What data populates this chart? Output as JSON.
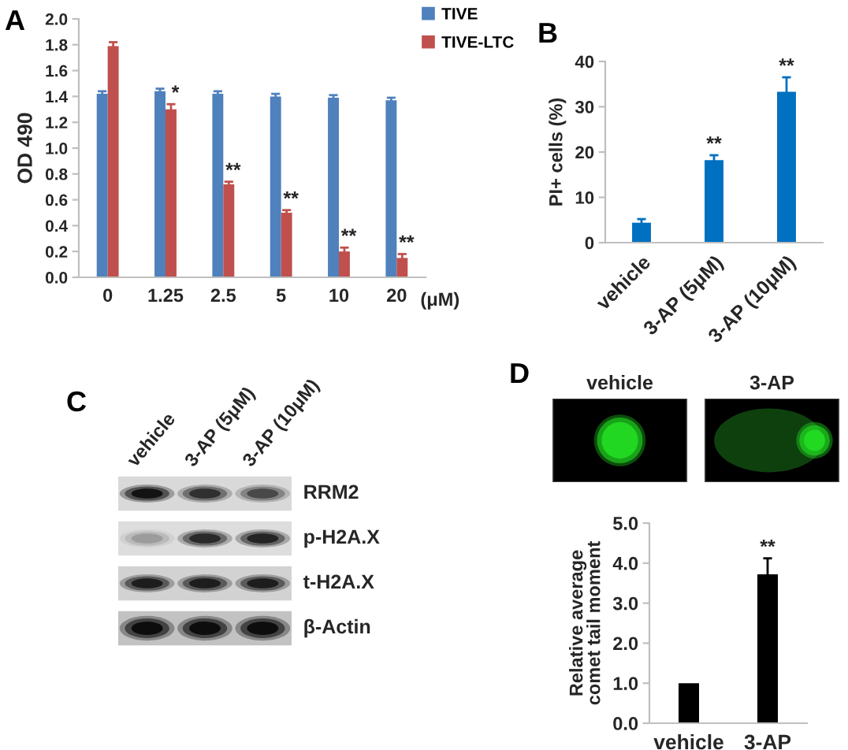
{
  "chart_data": [
    {
      "type": "bar",
      "title": "A",
      "ylabel": "OD 490",
      "xlabel": "(μM)",
      "categories": [
        "0",
        "1.25",
        "2.5",
        "5",
        "10",
        "20"
      ],
      "series": [
        {
          "name": "TIVE",
          "color": "#4f81bd",
          "values": [
            1.42,
            1.44,
            1.42,
            1.4,
            1.39,
            1.37
          ],
          "errors": [
            0.02,
            0.02,
            0.02,
            0.02,
            0.02,
            0.02
          ]
        },
        {
          "name": "TIVE-LTC",
          "color": "#c0504d",
          "values": [
            1.79,
            1.3,
            0.72,
            0.5,
            0.2,
            0.15
          ],
          "errors": [
            0.03,
            0.04,
            0.02,
            0.02,
            0.03,
            0.03
          ]
        }
      ],
      "ylim": [
        0,
        2
      ],
      "yticks": [
        {
          "value": 0,
          "label": "0.0"
        },
        {
          "value": 0.2,
          "label": "0.2"
        },
        {
          "value": 0.4,
          "label": "0.4"
        },
        {
          "value": 0.6,
          "label": "0.6"
        },
        {
          "value": 0.8,
          "label": "0.8"
        },
        {
          "value": 1.0,
          "label": "1.0"
        },
        {
          "value": 1.2,
          "label": "1.2"
        },
        {
          "value": 1.4,
          "label": "1.4"
        },
        {
          "value": 1.6,
          "label": "1.6"
        },
        {
          "value": 1.8,
          "label": "1.8"
        },
        {
          "value": 2.0,
          "label": "2.0"
        }
      ],
      "legend": "top right",
      "annotations": [
        {
          "text": "*",
          "x": "1.25",
          "y": 1.3
        },
        {
          "text": "**",
          "x": "2.5",
          "y": 0.72
        },
        {
          "text": "**",
          "x": "5",
          "y": 0.5
        },
        {
          "text": "**",
          "x": "10",
          "y": 0.2
        },
        {
          "text": "**",
          "x": "20",
          "y": 0.15
        }
      ]
    },
    {
      "type": "bar",
      "title": "B",
      "ylabel": "PI+ cells (%)",
      "categories": [
        "vehicle",
        "3-AP (5μM)",
        "3-AP (10μM)"
      ],
      "values": [
        4.4,
        18.2,
        33.3
      ],
      "errors": [
        0.8,
        1.1,
        3.2
      ],
      "color": "#0070c0",
      "ylim": [
        0,
        40
      ],
      "yticks": [
        0,
        10,
        20,
        30,
        40
      ],
      "annotations": [
        {
          "text": "**",
          "x": "3-AP (5μM)",
          "y": 18.2
        },
        {
          "text": "**",
          "x": "3-AP (10μM)",
          "y": 33.3
        }
      ]
    },
    {
      "type": "other",
      "title": "C",
      "categories": [
        "vehicle",
        "3-AP (5μM)",
        "3-AP (10μM)"
      ],
      "annotations": [
        "RRM2",
        "p-H2A.X",
        "t-H2A.X",
        "β-Actin"
      ]
    },
    {
      "type": "other",
      "title": "D",
      "categories": [
        "vehicle",
        "3-AP"
      ]
    },
    {
      "type": "bar",
      "ylabel": "Relative average\ncomet tail moment",
      "categories": [
        "vehicle",
        "3-AP"
      ],
      "values": [
        1.0,
        3.72
      ],
      "errors": [
        null,
        0.4
      ],
      "color": "#000000",
      "ylim": [
        0,
        5
      ],
      "yticks": [
        {
          "value": 0,
          "label": "0.0"
        },
        {
          "value": 1,
          "label": "1.0"
        },
        {
          "value": 2,
          "label": "2.0"
        },
        {
          "value": 3,
          "label": "3.0"
        },
        {
          "value": 4,
          "label": "4.0"
        },
        {
          "value": 5,
          "label": "5.0"
        }
      ],
      "annotations": [
        {
          "text": "**",
          "x": "3-AP",
          "y": 3.72
        }
      ]
    }
  ]
}
